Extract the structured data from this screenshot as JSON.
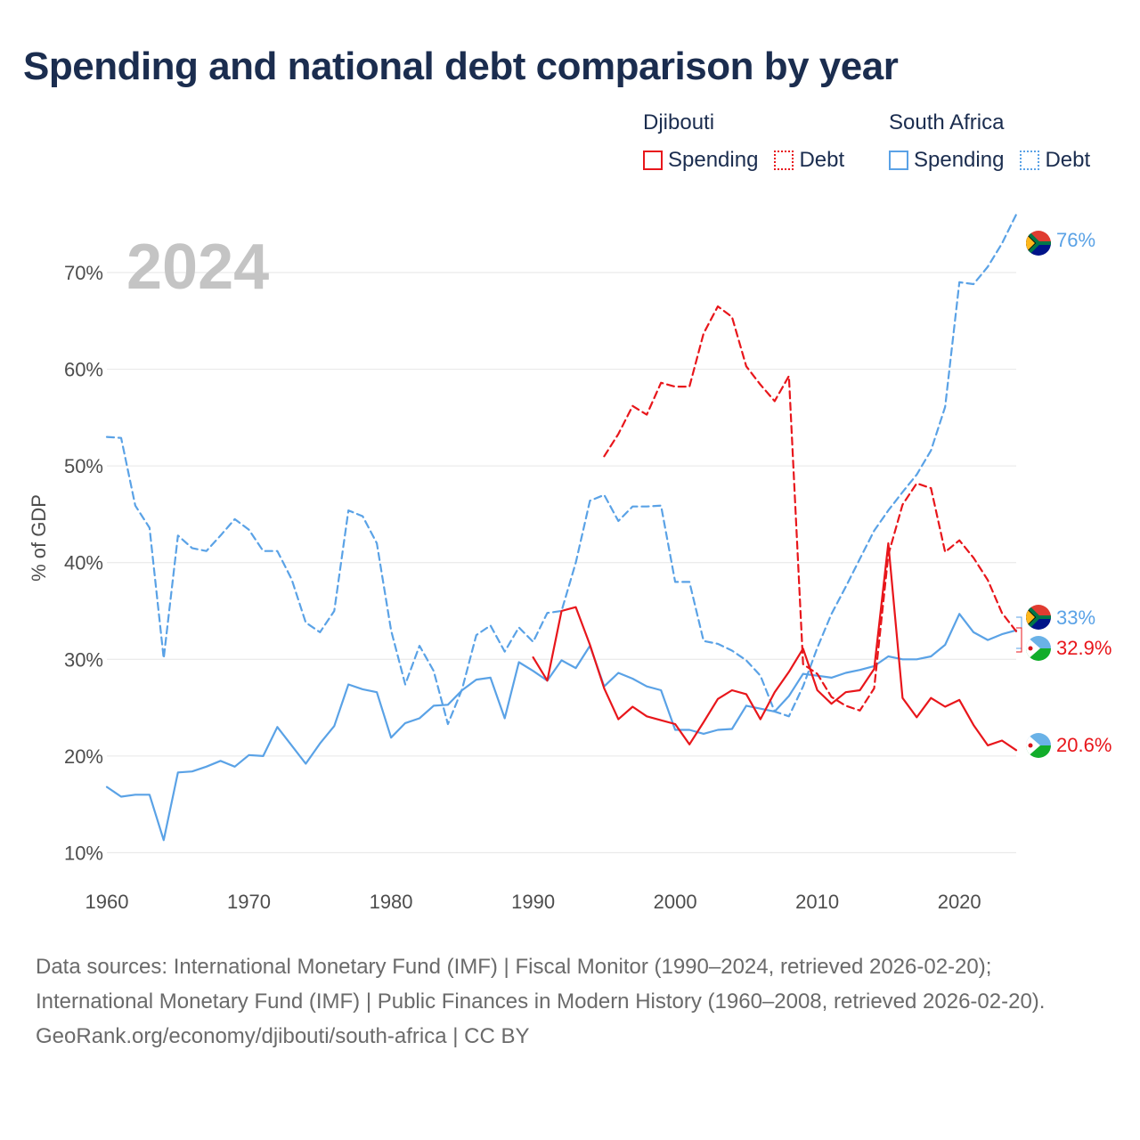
{
  "title": "Spending and national debt comparison by year",
  "year_label": "2024",
  "legend": {
    "groups": [
      {
        "country": "Djibouti",
        "items": [
          {
            "label": "Spending",
            "color": "#e8161b",
            "style": "solid"
          },
          {
            "label": "Debt",
            "color": "#e8161b",
            "style": "dotted"
          }
        ]
      },
      {
        "country": "South Africa",
        "items": [
          {
            "label": "Spending",
            "color": "#5aa2e6",
            "style": "solid"
          },
          {
            "label": "Debt",
            "color": "#5aa2e6",
            "style": "dotted"
          }
        ]
      }
    ]
  },
  "footer": {
    "sources": "Data sources: International Monetary Fund (IMF) | Fiscal Monitor (1990–2024, retrieved 2026-02-20); International Monetary Fund (IMF) | Public Finances in Modern History (1960–2008, retrieved 2026-02-20).",
    "credit": "GeoRank.org/economy/djibouti/south-africa | CC BY"
  },
  "colors": {
    "djibouti": "#e8161b",
    "south_africa": "#5aa2e6",
    "grid": "#e6e6e6",
    "text": "#4d4d4d"
  },
  "chart_data": {
    "type": "line",
    "ylabel": "% of GDP",
    "xlabel": "",
    "xlim": [
      1960,
      2024
    ],
    "ylim": [
      7,
      77
    ],
    "x_ticks": [
      1960,
      1970,
      1980,
      1990,
      2000,
      2010,
      2020
    ],
    "y_ticks": [
      10,
      20,
      30,
      40,
      50,
      60,
      70
    ],
    "y_tick_labels": [
      "10%",
      "20%",
      "30%",
      "40%",
      "50%",
      "60%",
      "70%"
    ],
    "series": [
      {
        "name": "South Africa Debt",
        "country": "South Africa",
        "kind": "Debt",
        "color": "#5aa2e6",
        "dash": "dashed",
        "x_start": 1960,
        "values": [
          53.0,
          52.9,
          45.9,
          43.6,
          30.1,
          42.8,
          41.5,
          41.2,
          42.8,
          44.5,
          43.4,
          41.2,
          41.2,
          38.3,
          33.8,
          32.8,
          35.0,
          45.4,
          44.8,
          42.0,
          33.0,
          27.4,
          31.4,
          28.8,
          23.3,
          26.9,
          32.5,
          33.5,
          30.8,
          33.3,
          31.8,
          34.8,
          35.0,
          40.0,
          46.4,
          47.0,
          44.3,
          45.8,
          45.8,
          45.9,
          38.0,
          38.0,
          31.9,
          31.6,
          30.9,
          29.9,
          28.3,
          24.6,
          24.1,
          27.2,
          31.2,
          34.7,
          37.5,
          40.4,
          43.3,
          45.4,
          47.3,
          49.1,
          51.6,
          56.1,
          69.0,
          68.8,
          70.6,
          73.0,
          76.0
        ]
      },
      {
        "name": "South Africa Spending",
        "country": "South Africa",
        "kind": "Spending",
        "color": "#5aa2e6",
        "dash": "solid",
        "x_start": 1960,
        "values": [
          16.8,
          15.8,
          16.0,
          16.0,
          11.3,
          18.3,
          18.4,
          18.9,
          19.5,
          18.9,
          20.1,
          20.0,
          23.0,
          21.1,
          19.2,
          21.3,
          23.1,
          27.4,
          26.9,
          26.6,
          21.9,
          23.4,
          23.9,
          25.2,
          25.3,
          26.8,
          27.9,
          28.1,
          23.9,
          29.7,
          28.8,
          27.8,
          29.9,
          29.1,
          31.4,
          27.2,
          28.6,
          28.0,
          27.2,
          26.8,
          22.7,
          22.7,
          22.3,
          22.7,
          22.8,
          25.2,
          24.9,
          24.6,
          26.2,
          28.5,
          28.3,
          28.1,
          28.6,
          28.9,
          29.3,
          30.3,
          30.0,
          30.0,
          30.3,
          31.5,
          34.7,
          32.8,
          32.0,
          32.6,
          33.0
        ]
      },
      {
        "name": "Djibouti Debt",
        "country": "Djibouti",
        "kind": "Debt",
        "color": "#e8161b",
        "dash": "dashed",
        "x_start": 1995,
        "values": [
          51.0,
          53.3,
          56.2,
          55.3,
          58.6,
          58.2,
          58.2,
          63.7,
          66.5,
          65.4,
          60.3,
          58.4,
          56.7,
          59.3,
          29.5,
          28.5,
          26.1,
          25.2,
          24.7,
          27.0,
          40.8,
          46.0,
          48.2,
          47.7,
          41.1,
          42.3,
          40.5,
          38.2,
          34.8,
          32.9
        ]
      },
      {
        "name": "Djibouti Spending",
        "country": "Djibouti",
        "kind": "Spending",
        "color": "#e8161b",
        "dash": "solid",
        "x_start": 1990,
        "values": [
          30.2,
          27.8,
          35.0,
          35.4,
          31.5,
          27.0,
          23.8,
          25.1,
          24.1,
          23.7,
          23.3,
          21.2,
          23.5,
          25.9,
          26.8,
          26.4,
          23.8,
          26.6,
          28.7,
          31.1,
          26.8,
          25.4,
          26.6,
          26.8,
          29.0,
          42.0,
          26.0,
          24.0,
          26.0,
          25.1,
          25.8,
          23.2,
          21.1,
          21.6,
          20.6
        ]
      }
    ],
    "end_labels": [
      {
        "label": "76%",
        "country": "South Africa",
        "value": 76.0,
        "color": "#5aa2e6"
      },
      {
        "label": "33%",
        "country": "South Africa",
        "value": 33.0,
        "color": "#5aa2e6"
      },
      {
        "label": "32.9%",
        "country": "Djibouti",
        "value": 32.9,
        "color": "#e8161b"
      },
      {
        "label": "20.6%",
        "country": "Djibouti",
        "value": 20.6,
        "color": "#e8161b"
      }
    ]
  }
}
